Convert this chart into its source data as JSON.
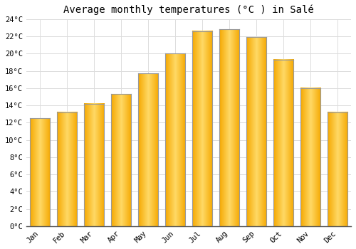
{
  "title": "Average monthly temperatures (°C ) in Salé",
  "months": [
    "Jan",
    "Feb",
    "Mar",
    "Apr",
    "May",
    "Jun",
    "Jul",
    "Aug",
    "Sep",
    "Oct",
    "Nov",
    "Dec"
  ],
  "values": [
    12.5,
    13.2,
    14.2,
    15.3,
    17.7,
    20.0,
    22.6,
    22.8,
    21.9,
    19.3,
    16.0,
    13.2
  ],
  "bar_color_left": "#F5A800",
  "bar_color_center": "#FFD966",
  "bar_color_right": "#F5A800",
  "bar_edge_color": "#999999",
  "ylim": [
    0,
    24
  ],
  "yticks": [
    0,
    2,
    4,
    6,
    8,
    10,
    12,
    14,
    16,
    18,
    20,
    22,
    24
  ],
  "ytick_labels": [
    "0°C",
    "2°C",
    "4°C",
    "6°C",
    "8°C",
    "10°C",
    "12°C",
    "14°C",
    "16°C",
    "18°C",
    "20°C",
    "22°C",
    "24°C"
  ],
  "background_color": "#ffffff",
  "grid_color": "#dddddd",
  "title_fontsize": 10,
  "tick_fontsize": 7.5,
  "bar_width": 0.75
}
